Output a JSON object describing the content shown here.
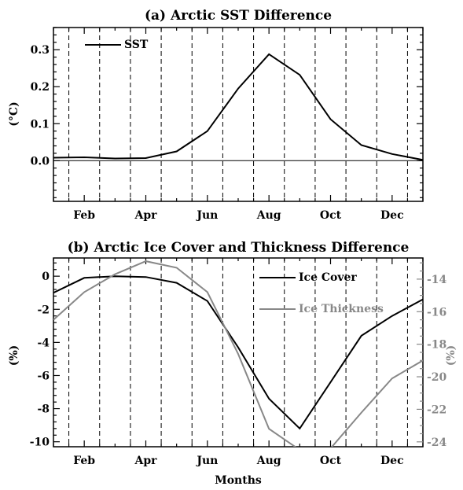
{
  "chart_data": [
    {
      "type": "line",
      "title": "(a) Arctic SST Difference",
      "xlabel": "",
      "ylabel": "(°C)",
      "x": [
        1,
        2,
        3,
        4,
        5,
        6,
        7,
        8,
        9,
        10,
        11,
        12
      ],
      "xlim": [
        0.5,
        12.5
      ],
      "xticks": [
        {
          "x": 1.5,
          "label": "Feb"
        },
        {
          "x": 3.5,
          "label": "Apr"
        },
        {
          "x": 5.5,
          "label": "Jun"
        },
        {
          "x": 7.5,
          "label": "Aug"
        },
        {
          "x": 9.5,
          "label": "Oct"
        },
        {
          "x": 11.5,
          "label": "Dec"
        }
      ],
      "vlines": [
        1,
        2,
        3,
        4,
        5,
        6,
        7,
        8,
        9,
        10,
        11,
        12
      ],
      "ylim": [
        -0.11,
        0.36
      ],
      "yticks": [
        {
          "v": 0.0,
          "label": "0.0"
        },
        {
          "v": 0.1,
          "label": "0.1"
        },
        {
          "v": 0.2,
          "label": "0.2"
        },
        {
          "v": 0.3,
          "label": "0.3"
        }
      ],
      "zero_line": true,
      "grid": false,
      "legend_position": "top-left",
      "series": [
        {
          "name": "SST",
          "color": "#000000",
          "axis": "left",
          "points": [
            [
              0.5,
              0.008
            ],
            [
              1.5,
              0.009
            ],
            [
              2.5,
              0.006
            ],
            [
              3.5,
              0.007
            ],
            [
              4.5,
              0.025
            ],
            [
              5.5,
              0.08
            ],
            [
              6.5,
              0.195
            ],
            [
              7.5,
              0.288
            ],
            [
              8.5,
              0.232
            ],
            [
              9.5,
              0.112
            ],
            [
              10.5,
              0.042
            ],
            [
              11.5,
              0.018
            ],
            [
              12.5,
              0.002
            ]
          ]
        }
      ]
    },
    {
      "type": "line",
      "title": "(b) Arctic Ice Cover and Thickness Difference",
      "xlabel": "Months",
      "ylabel": "(%)",
      "ylabel_right": "(%)",
      "x": [
        1,
        2,
        3,
        4,
        5,
        6,
        7,
        8,
        9,
        10,
        11,
        12
      ],
      "xlim": [
        0.5,
        12.5
      ],
      "xticks": [
        {
          "x": 1.5,
          "label": "Feb"
        },
        {
          "x": 3.5,
          "label": "Apr"
        },
        {
          "x": 5.5,
          "label": "Jun"
        },
        {
          "x": 7.5,
          "label": "Aug"
        },
        {
          "x": 9.5,
          "label": "Oct"
        },
        {
          "x": 11.5,
          "label": "Dec"
        }
      ],
      "vlines": [
        1,
        2,
        3,
        4,
        5,
        6,
        7,
        8,
        9,
        10,
        11,
        12
      ],
      "ylim": [
        -10.3,
        1.1
      ],
      "yticks": [
        {
          "v": 0,
          "label": "0"
        },
        {
          "v": -2,
          "label": "-2"
        },
        {
          "v": -4,
          "label": "-4"
        },
        {
          "v": -6,
          "label": "-6"
        },
        {
          "v": -8,
          "label": "-8"
        },
        {
          "v": -10,
          "label": "-10"
        }
      ],
      "ylim_right": [
        -24.3,
        -12.7
      ],
      "yticks_right": [
        {
          "v": -14,
          "label": "-14"
        },
        {
          "v": -16,
          "label": "-16"
        },
        {
          "v": -18,
          "label": "-18"
        },
        {
          "v": -20,
          "label": "-20"
        },
        {
          "v": -22,
          "label": "-22"
        },
        {
          "v": -24,
          "label": "-24"
        }
      ],
      "grid": false,
      "legend_position": "top-right",
      "series": [
        {
          "name": "Ice Cover",
          "color": "#000000",
          "axis": "left",
          "points": [
            [
              0.5,
              -1.0
            ],
            [
              1.5,
              -0.1
            ],
            [
              2.5,
              0.0
            ],
            [
              3.5,
              -0.05
            ],
            [
              4.5,
              -0.4
            ],
            [
              5.5,
              -1.5
            ],
            [
              6.5,
              -4.3
            ],
            [
              7.5,
              -7.4
            ],
            [
              8.5,
              -9.2
            ],
            [
              9.5,
              -6.4
            ],
            [
              10.5,
              -3.6
            ],
            [
              11.5,
              -2.4
            ],
            [
              12.5,
              -1.4
            ]
          ]
        },
        {
          "name": "Ice Thickness",
          "color": "#888888",
          "axis": "right",
          "points": [
            [
              0.5,
              -16.5
            ],
            [
              1.5,
              -14.8
            ],
            [
              2.5,
              -13.7
            ],
            [
              3.5,
              -12.9
            ],
            [
              4.5,
              -13.3
            ],
            [
              5.5,
              -14.8
            ],
            [
              6.5,
              -18.6
            ],
            [
              7.5,
              -23.2
            ],
            [
              8.5,
              -24.5
            ],
            [
              9.5,
              -24.4
            ],
            [
              10.5,
              -22.2
            ],
            [
              11.5,
              -20.1
            ],
            [
              12.5,
              -19.0
            ]
          ]
        }
      ]
    }
  ]
}
